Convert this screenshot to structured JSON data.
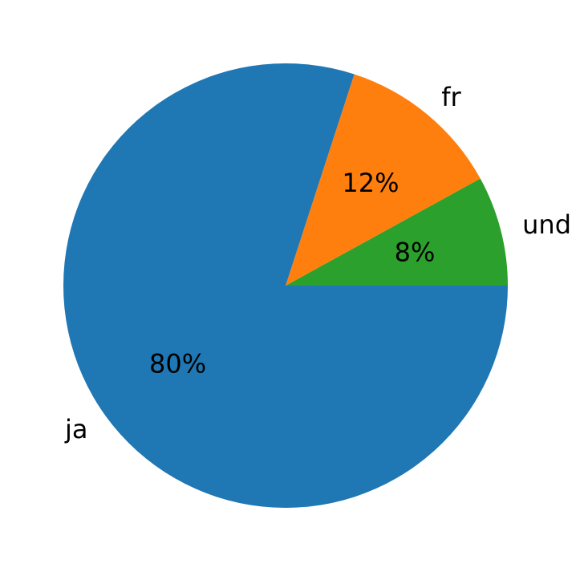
{
  "chart_data": {
    "type": "pie",
    "labels": [
      "und",
      "fr",
      "ja"
    ],
    "values": [
      8,
      12,
      80
    ],
    "value_labels": [
      "8%",
      "12%",
      "80%"
    ],
    "colors": [
      "#2ca02c",
      "#ff7f0e",
      "#1f77b4"
    ],
    "start_angle_deg": 0,
    "direction": "counterclockwise",
    "legend": "none"
  }
}
